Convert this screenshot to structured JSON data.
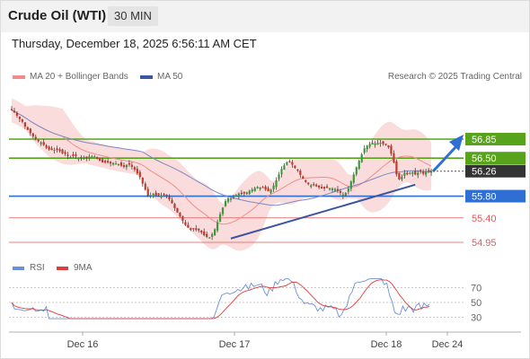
{
  "header": {
    "title": "Crude Oil (WTI)",
    "timeframe": "30 MIN",
    "datetime": "Thursday, December 18, 2025 6:56:11 AM CET"
  },
  "legend": {
    "ma20_label": "MA 20 + Bollinger Bands",
    "ma50_label": "MA 50",
    "credit": "Research © 2025 Trading Central",
    "rsi_label": "RSI",
    "rsi_ma_label": "9MA"
  },
  "colors": {
    "up": "#3a9a3a",
    "down": "#c0392b",
    "ma20": "#f08c8c",
    "band": "#f9d3d3",
    "ma50": "#7a8ac6",
    "resistance": "#58a31c",
    "pivot": "#2f6fd4",
    "support": "#e05a5a",
    "trendline": "#3b55a0",
    "rsi": "#6b8fd8",
    "rsi_ma": "#e23b3b",
    "last_price": "#333333"
  },
  "chart_data": [
    {
      "type": "candlestick",
      "title": "Crude Oil (WTI)",
      "timeframe": "30 MIN",
      "x_tick_labels": [
        "Dec 16",
        "Dec 17",
        "Dec 18",
        "Dec 24"
      ],
      "x": [
        0,
        1,
        2,
        3,
        4,
        5,
        6,
        7,
        8,
        9,
        10,
        11,
        12,
        13,
        14,
        15,
        16,
        17,
        18,
        19,
        20,
        21,
        22,
        23,
        24,
        25,
        26,
        27,
        28,
        29,
        30,
        31,
        32,
        33,
        34,
        35,
        36,
        37,
        38,
        39,
        40,
        41,
        42,
        43,
        44,
        45,
        46,
        47,
        48,
        49,
        50,
        51,
        52,
        53,
        54,
        55,
        56,
        57,
        58,
        59,
        60,
        61,
        62,
        63,
        64,
        65,
        66,
        67,
        68,
        69,
        70,
        71,
        72,
        73,
        74,
        75,
        76,
        77,
        78,
        79,
        80,
        81,
        82,
        83,
        84,
        85,
        86,
        87,
        88,
        89,
        90,
        91,
        92,
        93,
        94,
        95,
        96,
        97,
        98,
        99,
        100,
        101,
        102,
        103,
        104,
        105,
        106,
        107,
        108,
        109,
        110,
        111,
        112,
        113,
        114,
        115,
        116,
        117,
        118,
        119,
        120,
        121,
        122,
        123,
        124,
        125,
        126,
        127,
        128,
        129,
        130,
        131,
        132,
        133,
        134,
        135,
        136,
        137,
        138,
        139,
        140,
        141,
        142,
        143,
        144,
        145,
        146,
        147,
        148,
        149,
        150,
        151,
        152,
        153,
        154,
        155,
        156,
        157
      ],
      "close": [
        57.38,
        57.34,
        57.28,
        57.22,
        57.17,
        57.08,
        57.02,
        56.96,
        56.9,
        56.86,
        56.81,
        56.79,
        56.74,
        56.69,
        56.66,
        56.65,
        56.65,
        56.65,
        56.63,
        56.59,
        56.58,
        56.54,
        56.52,
        56.54,
        56.54,
        56.51,
        56.5,
        56.5,
        56.5,
        56.53,
        56.53,
        56.53,
        56.49,
        56.45,
        56.42,
        56.42,
        56.42,
        56.4,
        56.41,
        56.4,
        56.39,
        56.36,
        56.34,
        56.38,
        56.38,
        56.34,
        56.29,
        56.22,
        56.15,
        56.03,
        55.92,
        55.81,
        55.82,
        55.84,
        55.81,
        55.82,
        55.81,
        55.82,
        55.8,
        55.74,
        55.67,
        55.58,
        55.5,
        55.43,
        55.35,
        55.27,
        55.22,
        55.18,
        55.19,
        55.18,
        55.17,
        55.13,
        55.08,
        55.05,
        55.04,
        55.1,
        55.19,
        55.32,
        55.47,
        55.59,
        55.71,
        55.76,
        55.76,
        55.8,
        55.82,
        55.85,
        55.84,
        55.85,
        55.87,
        55.9,
        55.92,
        55.95,
        55.97,
        55.96,
        55.95,
        55.92,
        55.89,
        55.92,
        55.99,
        56.09,
        56.2,
        56.3,
        56.37,
        56.42,
        56.42,
        56.38,
        56.32,
        56.27,
        56.19,
        56.12,
        56.06,
        56.02,
        56.0,
        56.0,
        55.98,
        55.96,
        55.94,
        55.94,
        55.95,
        55.95,
        55.94,
        55.93,
        55.9,
        55.86,
        55.83,
        55.86,
        55.94,
        56.07,
        56.2,
        56.33,
        56.45,
        56.57,
        56.68,
        56.73,
        56.76,
        56.78,
        56.77,
        56.78,
        56.78,
        56.76,
        56.74,
        56.7,
        56.58,
        56.42,
        56.2,
        56.11,
        56.16,
        56.23,
        56.2,
        56.23,
        56.24,
        56.2,
        56.23,
        56.25,
        56.21,
        56.26,
        56.26,
        56.26
      ],
      "volatility_band": {
        "upper_offset": 0.22,
        "lower_offset": 0.22
      },
      "y_tick_labels": [
        "56.85",
        "56.50",
        "56.26",
        "55.80",
        "55.40",
        "54.95"
      ],
      "last_price": 56.26
    },
    {
      "type": "line",
      "series": [
        {
          "name": "RSI"
        },
        {
          "name": "9MA"
        }
      ],
      "y_tick_labels": [
        "70",
        "50",
        "30"
      ],
      "ylim": [
        10,
        90
      ]
    }
  ],
  "levels": [
    {
      "value": "56.85",
      "kind": "resistance"
    },
    {
      "value": "56.50",
      "kind": "resistance"
    },
    {
      "value": "55.80",
      "kind": "pivot"
    },
    {
      "value": "55.40",
      "kind": "support"
    },
    {
      "value": "54.95",
      "kind": "support"
    }
  ]
}
